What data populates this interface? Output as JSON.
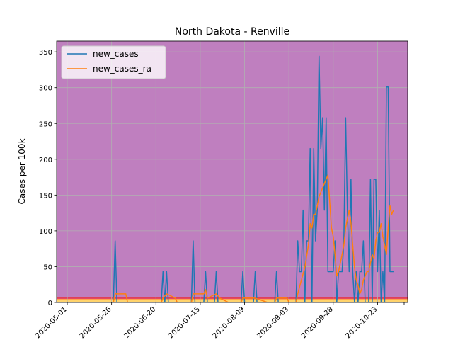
{
  "chart_data": {
    "type": "line",
    "title": "North Dakota - Renville",
    "xlabel": "",
    "ylabel": "Cases per 100k",
    "xlim": [
      "2020-04-25",
      "2020-11-09"
    ],
    "ylim": [
      0,
      365
    ],
    "grid": true,
    "legend_placement": "top-left",
    "background_bands": [
      {
        "from": 0,
        "to": 1,
        "color": "#f5f06a"
      },
      {
        "from": 1,
        "to": 3,
        "color": "#ffd36b"
      },
      {
        "from": 3,
        "to": 5,
        "color": "#ffa24f"
      },
      {
        "from": 5,
        "to": 7,
        "color": "#e0405a"
      },
      {
        "from": 7,
        "to": 365,
        "color": "#bf7fbf"
      }
    ],
    "x_ticks": [
      "2020-05-01",
      "2020-05-26",
      "2020-06-20",
      "2020-07-15",
      "2020-08-09",
      "2020-09-03",
      "2020-09-28",
      "2020-10-23"
    ],
    "y_ticks": [
      0,
      50,
      100,
      150,
      200,
      250,
      300,
      350
    ],
    "series": [
      {
        "name": "new_cases",
        "color": "#1f77b4",
        "points": [
          [
            "2020-04-29",
            0
          ],
          [
            "2020-05-27",
            0
          ],
          [
            "2020-05-28",
            86
          ],
          [
            "2020-05-29",
            0
          ],
          [
            "2020-06-23",
            0
          ],
          [
            "2020-06-24",
            43
          ],
          [
            "2020-06-25",
            0
          ],
          [
            "2020-06-26",
            43
          ],
          [
            "2020-06-27",
            0
          ],
          [
            "2020-07-10",
            0
          ],
          [
            "2020-07-11",
            86
          ],
          [
            "2020-07-12",
            0
          ],
          [
            "2020-07-17",
            0
          ],
          [
            "2020-07-18",
            43
          ],
          [
            "2020-07-19",
            0
          ],
          [
            "2020-07-23",
            0
          ],
          [
            "2020-07-24",
            43
          ],
          [
            "2020-07-25",
            0
          ],
          [
            "2020-08-07",
            0
          ],
          [
            "2020-08-08",
            43
          ],
          [
            "2020-08-09",
            0
          ],
          [
            "2020-08-14",
            0
          ],
          [
            "2020-08-15",
            43
          ],
          [
            "2020-08-16",
            0
          ],
          [
            "2020-08-26",
            0
          ],
          [
            "2020-08-27",
            43
          ],
          [
            "2020-08-28",
            0
          ],
          [
            "2020-09-07",
            0
          ],
          [
            "2020-09-08",
            86
          ],
          [
            "2020-09-09",
            43
          ],
          [
            "2020-09-10",
            43
          ],
          [
            "2020-09-11",
            129
          ],
          [
            "2020-09-12",
            0
          ],
          [
            "2020-09-13",
            86
          ],
          [
            "2020-09-14",
            86
          ],
          [
            "2020-09-15",
            215
          ],
          [
            "2020-09-16",
            0
          ],
          [
            "2020-09-17",
            215
          ],
          [
            "2020-09-18",
            86
          ],
          [
            "2020-09-19",
            129
          ],
          [
            "2020-09-20",
            344
          ],
          [
            "2020-09-21",
            215
          ],
          [
            "2020-09-22",
            258
          ],
          [
            "2020-09-23",
            129
          ],
          [
            "2020-09-24",
            258
          ],
          [
            "2020-09-25",
            43
          ],
          [
            "2020-09-26",
            43
          ],
          [
            "2020-09-27",
            43
          ],
          [
            "2020-09-28",
            43
          ],
          [
            "2020-09-29",
            86
          ],
          [
            "2020-09-30",
            0
          ],
          [
            "2020-10-01",
            43
          ],
          [
            "2020-10-02",
            43
          ],
          [
            "2020-10-03",
            43
          ],
          [
            "2020-10-04",
            86
          ],
          [
            "2020-10-05",
            258
          ],
          [
            "2020-10-06",
            129
          ],
          [
            "2020-10-07",
            43
          ],
          [
            "2020-10-08",
            172
          ],
          [
            "2020-10-09",
            43
          ],
          [
            "2020-10-10",
            0
          ],
          [
            "2020-10-11",
            43
          ],
          [
            "2020-10-12",
            0
          ],
          [
            "2020-10-13",
            43
          ],
          [
            "2020-10-14",
            43
          ],
          [
            "2020-10-15",
            86
          ],
          [
            "2020-10-16",
            0
          ],
          [
            "2020-10-17",
            0
          ],
          [
            "2020-10-18",
            0
          ],
          [
            "2020-10-19",
            172
          ],
          [
            "2020-10-20",
            0
          ],
          [
            "2020-10-21",
            172
          ],
          [
            "2020-10-22",
            172
          ],
          [
            "2020-10-23",
            43
          ],
          [
            "2020-10-24",
            129
          ],
          [
            "2020-10-25",
            0
          ],
          [
            "2020-10-26",
            43
          ],
          [
            "2020-10-27",
            0
          ],
          [
            "2020-10-28",
            301
          ],
          [
            "2020-10-29",
            301
          ],
          [
            "2020-10-30",
            43
          ],
          [
            "2020-11-01",
            43
          ]
        ]
      },
      {
        "name": "new_cases_ra",
        "color": "#ff7f0e",
        "points": [
          [
            "2020-04-29",
            0
          ],
          [
            "2020-05-27",
            0
          ],
          [
            "2020-05-28",
            12
          ],
          [
            "2020-06-03",
            12
          ],
          [
            "2020-06-04",
            0
          ],
          [
            "2020-06-23",
            0
          ],
          [
            "2020-06-24",
            6
          ],
          [
            "2020-06-26",
            12
          ],
          [
            "2020-07-01",
            6
          ],
          [
            "2020-07-02",
            0
          ],
          [
            "2020-07-10",
            0
          ],
          [
            "2020-07-11",
            12
          ],
          [
            "2020-07-17",
            12
          ],
          [
            "2020-07-18",
            18
          ],
          [
            "2020-07-19",
            6
          ],
          [
            "2020-07-24",
            12
          ],
          [
            "2020-07-26",
            6
          ],
          [
            "2020-07-31",
            0
          ],
          [
            "2020-08-07",
            0
          ],
          [
            "2020-08-08",
            6
          ],
          [
            "2020-08-15",
            6
          ],
          [
            "2020-08-22",
            0
          ],
          [
            "2020-08-26",
            0
          ],
          [
            "2020-08-27",
            6
          ],
          [
            "2020-09-02",
            6
          ],
          [
            "2020-09-03",
            0
          ],
          [
            "2020-09-07",
            0
          ],
          [
            "2020-09-08",
            12
          ],
          [
            "2020-09-10",
            31
          ],
          [
            "2020-09-12",
            49
          ],
          [
            "2020-09-14",
            80
          ],
          [
            "2020-09-15",
            110
          ],
          [
            "2020-09-16",
            104
          ],
          [
            "2020-09-17",
            123
          ],
          [
            "2020-09-18",
            123
          ],
          [
            "2020-09-19",
            135
          ],
          [
            "2020-09-20",
            148
          ],
          [
            "2020-09-22",
            160
          ],
          [
            "2020-09-24",
            172
          ],
          [
            "2020-09-25",
            178
          ],
          [
            "2020-09-26",
            141
          ],
          [
            "2020-09-27",
            104
          ],
          [
            "2020-09-28",
            92
          ],
          [
            "2020-09-29",
            67
          ],
          [
            "2020-09-30",
            37
          ],
          [
            "2020-10-01",
            43
          ],
          [
            "2020-10-02",
            55
          ],
          [
            "2020-10-03",
            67
          ],
          [
            "2020-10-04",
            80
          ],
          [
            "2020-10-05",
            104
          ],
          [
            "2020-10-06",
            117
          ],
          [
            "2020-10-07",
            129
          ],
          [
            "2020-10-08",
            111
          ],
          [
            "2020-10-09",
            80
          ],
          [
            "2020-10-10",
            49
          ],
          [
            "2020-10-11",
            31
          ],
          [
            "2020-10-12",
            24
          ],
          [
            "2020-10-13",
            12
          ],
          [
            "2020-10-14",
            18
          ],
          [
            "2020-10-15",
            31
          ],
          [
            "2020-10-16",
            37
          ],
          [
            "2020-10-17",
            43
          ],
          [
            "2020-10-18",
            43
          ],
          [
            "2020-10-19",
            55
          ],
          [
            "2020-10-20",
            67
          ],
          [
            "2020-10-21",
            61
          ],
          [
            "2020-10-22",
            86
          ],
          [
            "2020-10-23",
            98
          ],
          [
            "2020-10-24",
            98
          ],
          [
            "2020-10-25",
            110
          ],
          [
            "2020-10-26",
            92
          ],
          [
            "2020-10-27",
            80
          ],
          [
            "2020-10-28",
            67
          ],
          [
            "2020-10-29",
            104
          ],
          [
            "2020-10-30",
            135
          ],
          [
            "2020-10-31",
            123
          ],
          [
            "2020-11-01",
            129
          ]
        ]
      }
    ]
  }
}
